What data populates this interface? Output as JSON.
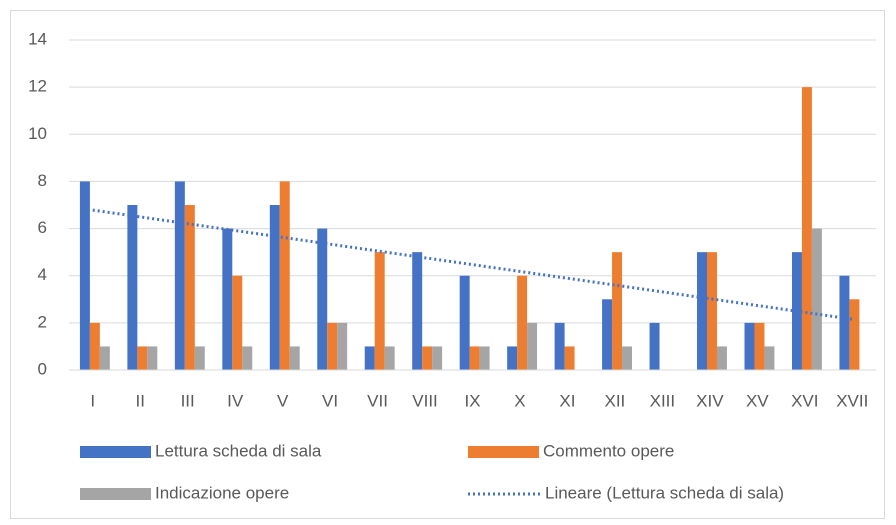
{
  "chart_data": {
    "type": "bar",
    "categories": [
      "I",
      "II",
      "III",
      "IV",
      "V",
      "VI",
      "VII",
      "VIII",
      "IX",
      "X",
      "XI",
      "XII",
      "XIII",
      "XIV",
      "XV",
      "XVI",
      "XVII"
    ],
    "series": [
      {
        "name": "Lettura scheda di sala",
        "color": "#4472c4",
        "values": [
          8,
          7,
          8,
          6,
          7,
          6,
          1,
          5,
          4,
          1,
          2,
          3,
          2,
          5,
          2,
          5,
          4
        ]
      },
      {
        "name": "Commento opere",
        "color": "#ed7d31",
        "values": [
          2,
          1,
          7,
          4,
          8,
          2,
          5,
          1,
          1,
          4,
          1,
          5,
          0,
          5,
          2,
          12,
          3
        ]
      },
      {
        "name": "Indicazione opere",
        "color": "#a5a5a5",
        "values": [
          1,
          1,
          1,
          1,
          1,
          2,
          1,
          1,
          1,
          2,
          0,
          1,
          0,
          1,
          1,
          6,
          0
        ]
      }
    ],
    "trendline": {
      "name": "Lineare (Lettura scheda di sala)",
      "series": 0,
      "kind": "linear",
      "color": "#4472c4",
      "style": "dotted"
    },
    "ylim": [
      0,
      14
    ],
    "yticks": [
      0,
      2,
      4,
      6,
      8,
      10,
      12,
      14
    ],
    "grid": true,
    "legend": "bottom"
  }
}
